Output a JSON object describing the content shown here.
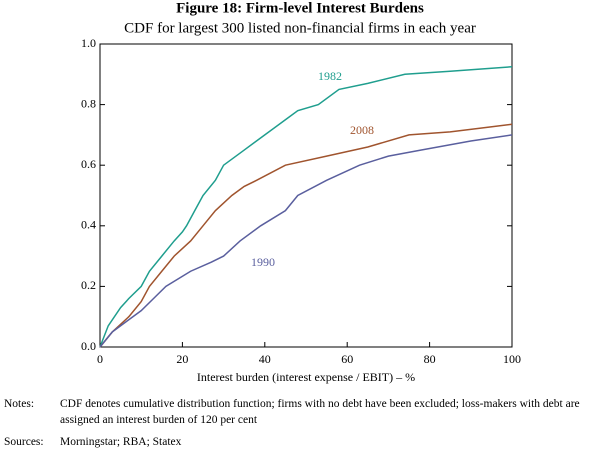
{
  "chart_data": {
    "type": "line",
    "title": "Figure 18: Firm-level Interest Burdens",
    "subtitle": "CDF for largest 300 listed non-financial firms in each year",
    "x_label": "Interest burden (interest expense / EBIT) – %",
    "xlim": [
      0,
      100
    ],
    "xticks": [
      0,
      20,
      40,
      60,
      80,
      100
    ],
    "ylim": [
      0,
      1
    ],
    "yticks": [
      {
        "value": 0,
        "label": "0.0"
      },
      {
        "value": 0.2,
        "label": "0.2"
      },
      {
        "value": 0.4,
        "label": "0.4"
      },
      {
        "value": 0.6,
        "label": "0.6"
      },
      {
        "value": 0.8,
        "label": "0.8"
      },
      {
        "value": 1,
        "label": "1.0"
      }
    ],
    "grid": false,
    "series": [
      {
        "name": "1982",
        "color": "#1f9e8e",
        "x": [
          0,
          2,
          5,
          7,
          10,
          12,
          15,
          18,
          20,
          21,
          23,
          25,
          28,
          30,
          35,
          40,
          45,
          48,
          53,
          58,
          65,
          74,
          85,
          100
        ],
        "values": [
          0,
          0.07,
          0.13,
          0.16,
          0.2,
          0.25,
          0.3,
          0.35,
          0.38,
          0.4,
          0.45,
          0.5,
          0.55,
          0.6,
          0.65,
          0.7,
          0.75,
          0.78,
          0.8,
          0.85,
          0.87,
          0.9,
          0.91,
          0.925
        ]
      },
      {
        "name": "2008",
        "color": "#a0542e",
        "x": [
          0,
          3,
          7,
          10,
          12,
          15,
          18,
          22,
          25,
          28,
          32,
          35,
          38,
          45,
          55,
          65,
          75,
          85,
          100
        ],
        "values": [
          0,
          0.05,
          0.1,
          0.15,
          0.2,
          0.25,
          0.3,
          0.35,
          0.4,
          0.45,
          0.5,
          0.53,
          0.55,
          0.6,
          0.63,
          0.66,
          0.7,
          0.71,
          0.735
        ]
      },
      {
        "name": "1990",
        "color": "#5a5f9e",
        "x": [
          0,
          3,
          6,
          10,
          13,
          16,
          22,
          27,
          30,
          34,
          39,
          45,
          48,
          55,
          63,
          70,
          78,
          90,
          100
        ],
        "values": [
          0,
          0.05,
          0.08,
          0.12,
          0.16,
          0.2,
          0.25,
          0.28,
          0.3,
          0.35,
          0.4,
          0.45,
          0.5,
          0.55,
          0.6,
          0.63,
          0.65,
          0.68,
          0.7
        ]
      }
    ],
    "notes_label": "Notes:",
    "notes": "CDF denotes cumulative distribution function; firms with no debt have been excluded; loss-makers with debt are assigned an interest burden of 120 per cent",
    "sources_label": "Sources:",
    "sources": "Morningstar; RBA; Statex"
  }
}
